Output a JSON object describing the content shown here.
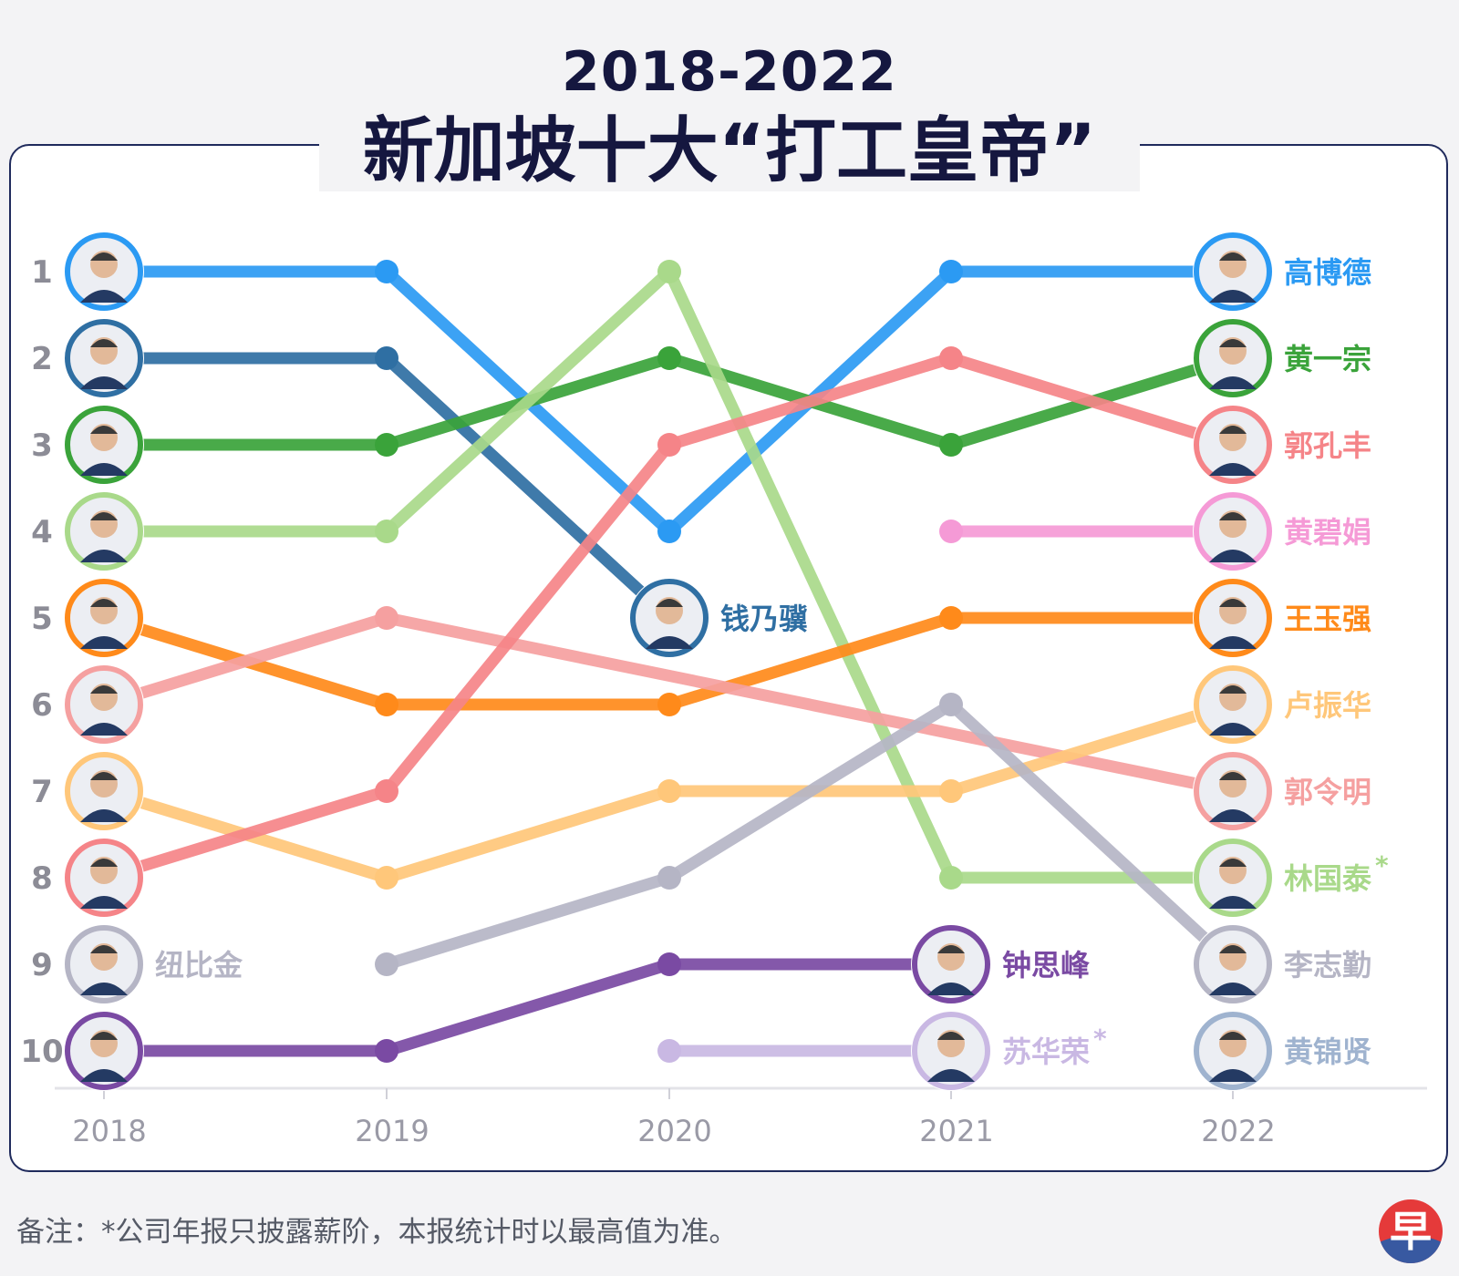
{
  "title": {
    "line1": "2018-2022",
    "line2": "新加坡十大“打工皇帝”"
  },
  "note": "备注：*公司年报只披露薪阶，本报统计时以最高值为准。",
  "logo": {
    "text": "早",
    "label": "联合早报 logo"
  },
  "chart_data": {
    "type": "bump",
    "title": "2018-2022 新加坡十大“打工皇帝”",
    "x": [
      "2018",
      "2019",
      "2020",
      "2021",
      "2022"
    ],
    "y_ticks": [
      "1",
      "2",
      "3",
      "4",
      "5",
      "6",
      "7",
      "8",
      "9",
      "10"
    ],
    "ylim": [
      1,
      10
    ],
    "series": [
      {
        "name": "高博德",
        "color": "#2b9af3",
        "ranks": [
          1,
          1,
          4,
          1,
          1
        ],
        "label_at": "2022"
      },
      {
        "name": "钱乃骥",
        "color": "#2f6fa3",
        "ranks": [
          2,
          2,
          5,
          null,
          null
        ],
        "label_at": "2020"
      },
      {
        "name": "黄一宗",
        "color": "#3aa33a",
        "ranks": [
          3,
          3,
          2,
          3,
          2
        ],
        "label_at": "2022"
      },
      {
        "name": "林国泰",
        "color": "#a9d98a",
        "ranks": [
          4,
          4,
          1,
          8,
          8
        ],
        "label_at": "2022",
        "asterisk": true
      },
      {
        "name": "王玉强",
        "color": "#ff8a1a",
        "ranks": [
          5,
          6,
          6,
          5,
          5
        ],
        "label_at": "2022"
      },
      {
        "name": "郭令明",
        "color": "#f5a0a0",
        "ranks": [
          6,
          5,
          null,
          null,
          7
        ],
        "label_at": "2022"
      },
      {
        "name": "卢振华",
        "color": "#ffc77a",
        "ranks": [
          7,
          8,
          7,
          7,
          6
        ],
        "label_at": "2022"
      },
      {
        "name": "郭孔丰",
        "color": "#f58488",
        "ranks": [
          8,
          7,
          3,
          2,
          3
        ],
        "label_at": "2022"
      },
      {
        "name": "纽比金",
        "color": "#b5b5c5",
        "ranks": [
          9,
          null,
          null,
          null,
          null
        ],
        "label_at": "2018"
      },
      {
        "name": "李志勤",
        "color": "#b5b5c5",
        "ranks": [
          null,
          9,
          8,
          6,
          9
        ],
        "label_at": "2022"
      },
      {
        "name": "钟思峰",
        "color": "#7a4aa3",
        "ranks": [
          10,
          10,
          9,
          9,
          null
        ],
        "label_at": "2021"
      },
      {
        "name": "苏华荣",
        "color": "#c9b8e3",
        "ranks": [
          null,
          null,
          10,
          10,
          null
        ],
        "label_at": "2021",
        "asterisk": true
      },
      {
        "name": "黄碧娟",
        "color": "#f59ad6",
        "ranks": [
          null,
          null,
          null,
          4,
          4
        ],
        "label_at": "2022"
      },
      {
        "name": "黄锦贤",
        "color": "#9fb3cf",
        "ranks": [
          null,
          null,
          null,
          null,
          10
        ],
        "label_at": "2022"
      }
    ]
  }
}
